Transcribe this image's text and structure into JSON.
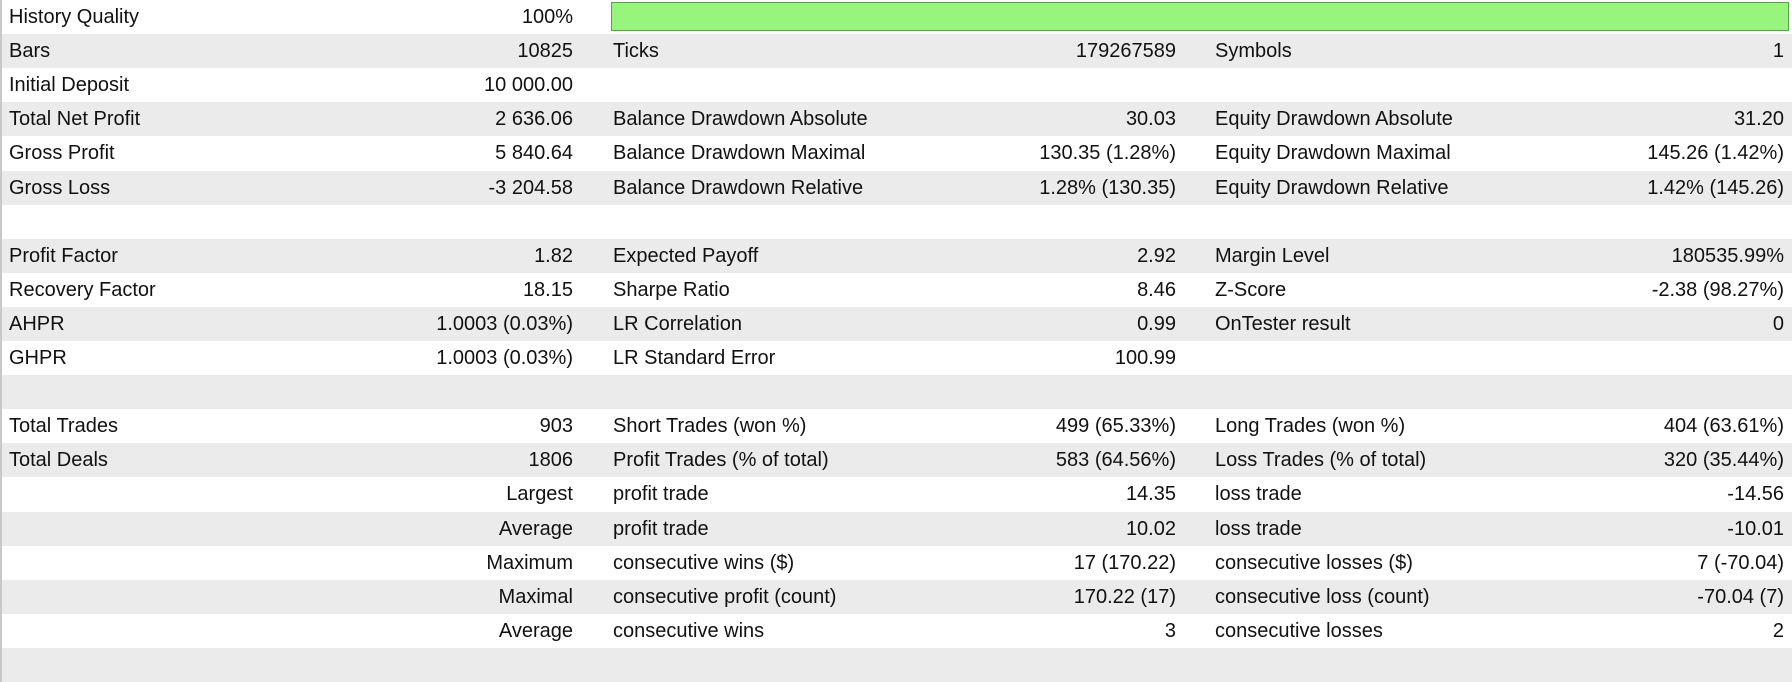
{
  "report": {
    "rows": [
      [
        "History Quality",
        "100%",
        null,
        null,
        null,
        null
      ],
      [
        "Bars",
        "10825",
        "Ticks",
        "179267589",
        "Symbols",
        "1"
      ],
      [
        "Initial Deposit",
        "10 000.00",
        null,
        null,
        null,
        null
      ],
      [
        "Total Net Profit",
        "2 636.06",
        "Balance Drawdown Absolute",
        "30.03",
        "Equity Drawdown Absolute",
        "31.20"
      ],
      [
        "Gross Profit",
        "5 840.64",
        "Balance Drawdown Maximal",
        "130.35 (1.28%)",
        "Equity Drawdown Maximal",
        "145.26 (1.42%)"
      ],
      [
        "Gross Loss",
        "-3 204.58",
        "Balance Drawdown Relative",
        "1.28% (130.35)",
        "Equity Drawdown Relative",
        "1.42% (145.26)"
      ],
      [
        null,
        null,
        null,
        null,
        null,
        null
      ],
      [
        "Profit Factor",
        "1.82",
        "Expected Payoff",
        "2.92",
        "Margin Level",
        "180535.99%"
      ],
      [
        "Recovery Factor",
        "18.15",
        "Sharpe Ratio",
        "8.46",
        "Z-Score",
        "-2.38 (98.27%)"
      ],
      [
        "AHPR",
        "1.0003 (0.03%)",
        "LR Correlation",
        "0.99",
        "OnTester result",
        "0"
      ],
      [
        "GHPR",
        "1.0003 (0.03%)",
        "LR Standard Error",
        "100.99",
        null,
        null
      ],
      [
        null,
        null,
        null,
        null,
        null,
        null
      ],
      [
        "Total Trades",
        "903",
        "Short Trades (won %)",
        "499 (65.33%)",
        "Long Trades (won %)",
        "404 (63.61%)"
      ],
      [
        "Total Deals",
        "1806",
        "Profit Trades (% of total)",
        "583 (64.56%)",
        "Loss Trades (% of total)",
        "320 (35.44%)"
      ],
      [
        null,
        "Largest",
        "profit trade",
        "14.35",
        "loss trade",
        "-14.56"
      ],
      [
        null,
        "Average",
        "profit trade",
        "10.02",
        "loss trade",
        "-10.01"
      ],
      [
        null,
        "Maximum",
        "consecutive wins ($)",
        "17 (170.22)",
        "consecutive losses ($)",
        "7 (-70.04)"
      ],
      [
        null,
        "Maximal",
        "consecutive profit (count)",
        "170.22 (17)",
        "consecutive loss (count)",
        "-70.04 (7)"
      ],
      [
        null,
        "Average",
        "consecutive wins",
        "3",
        "consecutive losses",
        "2"
      ],
      [
        null,
        null,
        null,
        null,
        null,
        null
      ]
    ]
  }
}
